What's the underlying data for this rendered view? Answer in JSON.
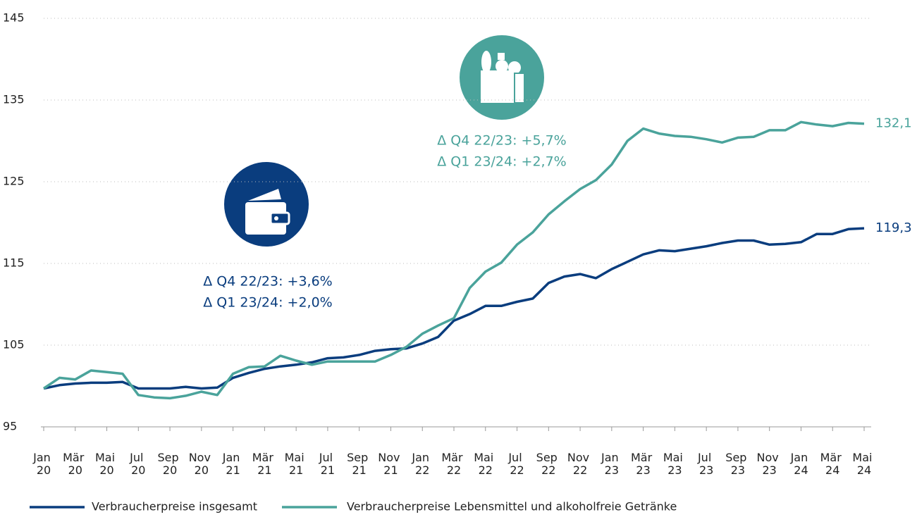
{
  "chart_data": {
    "type": "line",
    "categories": [
      "Jan 20",
      null,
      "Mär 20",
      null,
      "Mai 20",
      null,
      "Jul 20",
      null,
      "Sep 20",
      null,
      "Nov 20",
      null,
      "Jan 21",
      null,
      "Mär 21",
      null,
      "Mai 21",
      null,
      "Jul 21",
      null,
      "Sep 21",
      null,
      "Nov 21",
      null,
      "Jan 22",
      null,
      "Mär 22",
      null,
      "Mai 22",
      null,
      "Jul 22",
      null,
      "Sep 22",
      null,
      "Nov 22",
      null,
      "Jan 23",
      null,
      "Mär 23",
      null,
      "Mai 23",
      null,
      "Jul 23",
      null,
      "Sep 23",
      null,
      "Nov 23",
      null,
      "Jan 24",
      null,
      "Mär 24",
      null,
      "Mai 24"
    ],
    "series": [
      {
        "name": "Verbraucherpreise insgesamt",
        "color": "#0a3d7e",
        "values": [
          99.7,
          100.1,
          100.3,
          100.4,
          100.4,
          100.5,
          99.7,
          99.7,
          99.7,
          99.9,
          99.7,
          99.8,
          101.0,
          101.6,
          102.1,
          102.4,
          102.6,
          102.9,
          103.4,
          103.5,
          103.8,
          104.3,
          104.5,
          104.6,
          105.2,
          106.0,
          108.0,
          108.8,
          109.8,
          109.8,
          110.3,
          110.7,
          112.6,
          113.4,
          113.7,
          113.2,
          114.3,
          115.2,
          116.1,
          116.6,
          116.5,
          116.8,
          117.1,
          117.5,
          117.8,
          117.8,
          117.3,
          117.4,
          117.6,
          118.6,
          118.6,
          119.2,
          119.3
        ],
        "value_labels": [
          null,
          null,
          null,
          null,
          null,
          null,
          null,
          null,
          null,
          null,
          null,
          null,
          null,
          null,
          null,
          null,
          null,
          null,
          null,
          null,
          null,
          null,
          null,
          null,
          null,
          null,
          null,
          null,
          null,
          null,
          null,
          null,
          null,
          null,
          null,
          null,
          null,
          null,
          null,
          null,
          null,
          null,
          null,
          null,
          null,
          null,
          null,
          null,
          null,
          null,
          null,
          null,
          "119,3"
        ]
      },
      {
        "name": "Verbraucherpreise Lebensmittel und alkoholfreie Getränke",
        "color": "#4aa39b",
        "values": [
          99.7,
          101.0,
          100.8,
          101.9,
          101.7,
          101.5,
          98.9,
          98.6,
          98.5,
          98.8,
          99.3,
          98.9,
          101.5,
          102.3,
          102.4,
          103.7,
          103.1,
          102.6,
          103.0,
          103.0,
          103.0,
          103.0,
          103.8,
          104.8,
          106.4,
          107.4,
          108.3,
          112.0,
          114.0,
          115.1,
          117.3,
          118.8,
          121.0,
          122.6,
          124.1,
          125.2,
          127.1,
          130.0,
          131.5,
          130.9,
          130.6,
          130.5,
          130.2,
          129.8,
          130.4,
          130.5,
          131.3,
          131.3,
          132.3,
          132.0,
          131.8,
          132.2,
          132.1
        ],
        "value_labels": [
          null,
          null,
          null,
          null,
          null,
          null,
          null,
          null,
          null,
          null,
          null,
          null,
          null,
          null,
          null,
          null,
          null,
          null,
          null,
          null,
          null,
          null,
          null,
          null,
          null,
          null,
          null,
          null,
          null,
          null,
          null,
          null,
          null,
          null,
          null,
          null,
          null,
          null,
          null,
          null,
          null,
          null,
          null,
          null,
          null,
          null,
          null,
          null,
          null,
          null,
          null,
          null,
          "132,1"
        ]
      }
    ],
    "annotations": [
      {
        "lines": [
          "Δ Q4 22/23: +3,6%",
          "Δ Q1 23/24: +2,0%"
        ],
        "color": "#0a3d7e"
      },
      {
        "lines": [
          "Δ Q4 22/23: +5,7%",
          "Δ Q1 23/24: +2,7%"
        ],
        "color": "#4aa39b"
      }
    ],
    "ylim": [
      95,
      145
    ],
    "yticks": [
      95,
      105,
      115,
      125,
      135,
      145
    ],
    "grid": true
  }
}
